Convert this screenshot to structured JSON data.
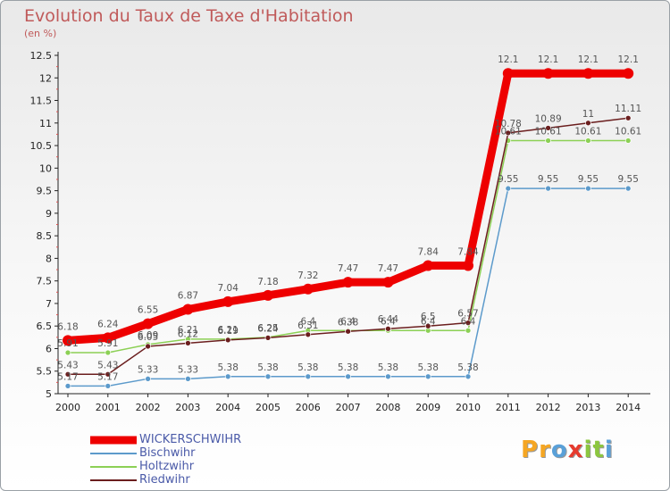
{
  "header": {
    "title": "Evolution du Taux de Taxe d'Habitation",
    "subtitle": "(en %)"
  },
  "logo": {
    "letters": [
      "P",
      "r",
      "o",
      "x",
      "i",
      "t",
      "i"
    ],
    "colors": [
      "#f5a623",
      "#f5a623",
      "#5aa0d8",
      "#e63b2e",
      "#8cc63f",
      "#8cc63f",
      "#5aa0d8"
    ]
  },
  "chart_data": {
    "type": "line",
    "title": "Evolution du Taux de Taxe d'Habitation",
    "ylabel": "(en %)",
    "xlabel": "",
    "x": [
      "2000",
      "2001",
      "2002",
      "2003",
      "2004",
      "2005",
      "2006",
      "2007",
      "2008",
      "2009",
      "2010",
      "2011",
      "2012",
      "2013",
      "2014"
    ],
    "ylim": [
      5,
      12.5
    ],
    "yticks": [
      "5",
      "5.5",
      "6",
      "6.5",
      "7",
      "7.5",
      "8",
      "8.5",
      "9",
      "9.5",
      "10",
      "10.5",
      "11",
      "11.5",
      "12",
      "12.5"
    ],
    "grid": false,
    "legend_position": "bottom-left",
    "series": [
      {
        "name": "WICKERSCHWIHR",
        "color": "#ee0000",
        "values": [
          6.18,
          6.24,
          6.55,
          6.87,
          7.04,
          7.18,
          7.32,
          7.47,
          7.47,
          7.84,
          7.84,
          12.1,
          12.1,
          12.1,
          12.1
        ],
        "labels": [
          "6.18",
          "6.24",
          "6.55",
          "6.87",
          "7.04",
          "7.18",
          "7.32",
          "7.47",
          "7.47",
          "7.84",
          "7.84",
          "12.1",
          "12.1",
          "12.1",
          "12.1"
        ]
      },
      {
        "name": "Bischwihr",
        "color": "#5c9acb",
        "values": [
          5.17,
          5.17,
          5.33,
          5.33,
          5.38,
          5.38,
          5.38,
          5.38,
          5.38,
          5.38,
          5.38,
          9.55,
          9.55,
          9.55,
          9.55
        ],
        "labels": [
          "5.17",
          "5.17",
          "5.33",
          "5.33",
          "5.38",
          "5.38",
          "5.38",
          "5.38",
          "5.38",
          "5.38",
          "5.38",
          "9.55",
          "9.55",
          "9.55",
          "9.55"
        ]
      },
      {
        "name": "Holtzwihr",
        "color": "#8cd055",
        "values": [
          5.91,
          5.91,
          6.09,
          6.21,
          6.21,
          6.25,
          6.4,
          6.4,
          6.4,
          6.4,
          6.4,
          10.61,
          10.61,
          10.61,
          10.61
        ],
        "labels": [
          "5.91",
          "5.91",
          "6.09",
          "6.21",
          "6.21",
          "6.25",
          "6.4",
          "6.4",
          "6.4",
          "6.4",
          "6.4",
          "10.61",
          "10.61",
          "10.61",
          "10.61"
        ]
      },
      {
        "name": "Riedwihr",
        "color": "#6b1e1e",
        "values": [
          5.43,
          5.43,
          6.05,
          6.12,
          6.19,
          6.24,
          6.31,
          6.38,
          6.44,
          6.5,
          6.57,
          10.78,
          10.89,
          11,
          11.11
        ],
        "labels": [
          "5.43",
          "5.43",
          "6.05",
          "6.12",
          "6.19",
          "6.24",
          "6.31",
          "6.38",
          "6.44",
          "6.5",
          "6.57",
          "10.78",
          "10.89",
          "11",
          "11.11"
        ]
      }
    ]
  }
}
